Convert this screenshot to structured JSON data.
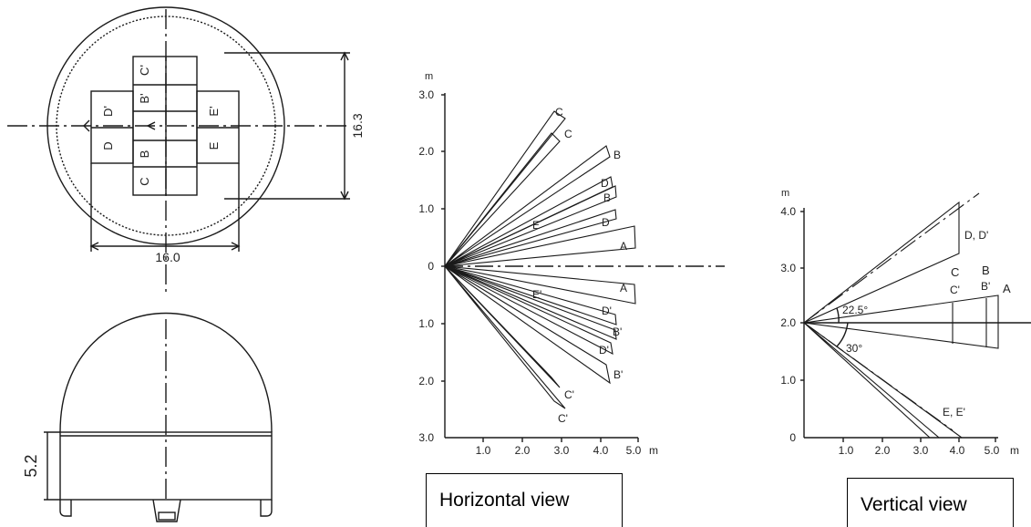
{
  "lens_drawing": {
    "segment_labels": [
      "C'",
      "B'",
      "D'",
      "E'",
      "D",
      "B",
      "E",
      "C"
    ],
    "dim_diameter": "16.3",
    "dim_width": "16.0",
    "dim_height": "5.2"
  },
  "horizontal_view": {
    "caption": "Horizontal view",
    "y_unit": "m",
    "x_unit": "m",
    "y_ticks": [
      "3.0",
      "2.0",
      "1.0",
      "0",
      "1.0",
      "2.0",
      "3.0"
    ],
    "x_ticks": [
      "1.0",
      "2.0",
      "3.0",
      "4.0",
      "5.0"
    ],
    "zone_labels": [
      "C",
      "C",
      "B",
      "D",
      "B",
      "E",
      "D",
      "A",
      "A",
      "E'",
      "D'",
      "B'",
      "D'",
      "B'",
      "C'",
      "C'"
    ]
  },
  "vertical_view": {
    "caption": "Vertical view",
    "y_unit": "m",
    "x_unit": "m",
    "y_ticks": [
      "4.0",
      "3.0",
      "2.0",
      "1.0",
      "0"
    ],
    "x_ticks": [
      "1.0",
      "2.0",
      "3.0",
      "4.0",
      "5.0"
    ],
    "zone_labels": [
      "D, D'",
      "C",
      "C'",
      "B",
      "B'",
      "A",
      "E, E'"
    ],
    "angle_up": "22.5°",
    "angle_down": "30°"
  }
}
